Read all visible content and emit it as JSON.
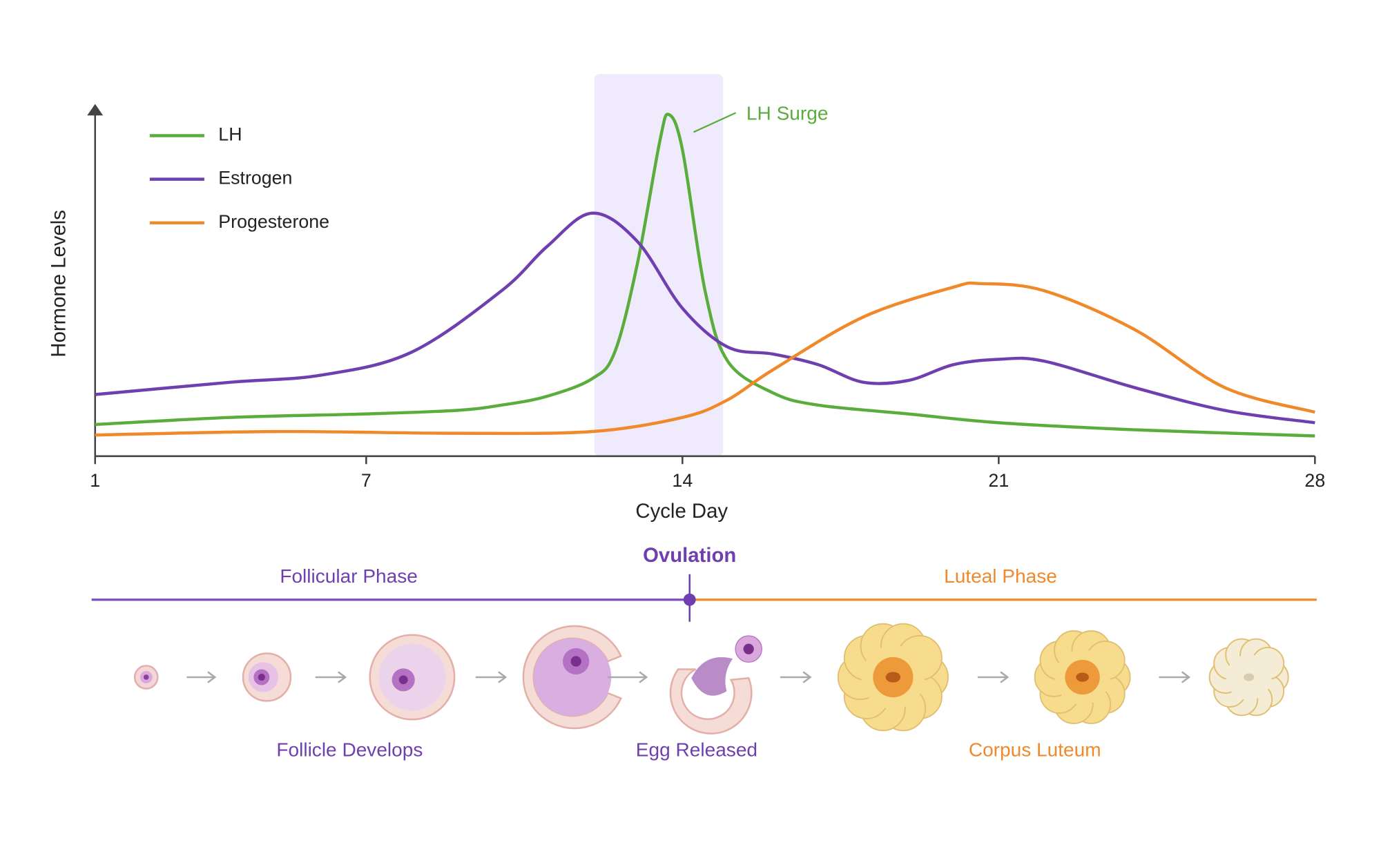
{
  "chart_data": {
    "type": "line",
    "y_label": "Hormone Levels",
    "x_label": "Cycle Day",
    "xlim": [
      1,
      28
    ],
    "xticks": [
      1,
      7,
      14,
      21,
      28
    ],
    "ylim": [
      0,
      100
    ],
    "highlight_xrange": [
      12.05,
      14.9
    ],
    "annotation": {
      "text": "LH Surge",
      "x": 13.7,
      "y": 97
    },
    "series": [
      {
        "name": "LH",
        "color": "#5aad3c",
        "x": [
          1,
          4,
          7,
          9,
          10,
          11,
          12,
          12.5,
          13,
          13.5,
          13.7,
          14,
          14.5,
          15,
          16,
          17,
          19,
          21,
          24,
          28
        ],
        "values": [
          9,
          11,
          12,
          13,
          14.5,
          17,
          22,
          29.5,
          54.5,
          89.5,
          97,
          87,
          47,
          27,
          18,
          14.5,
          12,
          9.5,
          7.5,
          5.75
        ]
      },
      {
        "name": "Estrogen",
        "color": "#6f3fb0",
        "x": [
          1,
          4,
          6,
          8,
          10,
          11,
          12,
          13,
          14,
          15,
          16,
          17,
          18,
          19,
          20,
          21,
          22,
          24,
          26,
          28
        ],
        "values": [
          17.5,
          21,
          23,
          29.5,
          47,
          59.5,
          69,
          61,
          42,
          31,
          29,
          26,
          21,
          21.5,
          26,
          27.5,
          27,
          19.5,
          13,
          9.5
        ]
      },
      {
        "name": "Progesterone",
        "color": "#f0892a",
        "x": [
          1,
          5,
          9,
          12,
          14,
          15,
          16,
          18,
          20,
          20.6,
          22,
          24,
          26,
          28
        ],
        "values": [
          6,
          7,
          6.5,
          7,
          11,
          16,
          24.5,
          39.5,
          48,
          49,
          47,
          36,
          19.5,
          12.5
        ]
      }
    ]
  },
  "timeline": {
    "ovulation": "Ovulation",
    "follicular": "Follicular Phase",
    "luteal": "Luteal Phase",
    "stages": [
      "Follicle Develops",
      "Egg Released",
      "Corpus Luteum"
    ]
  }
}
